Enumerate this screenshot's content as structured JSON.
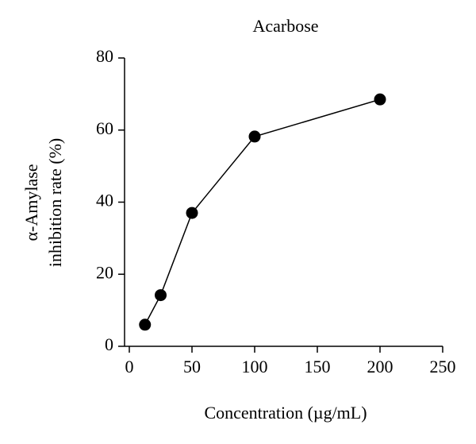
{
  "chart_data": {
    "type": "line",
    "title": "Acarbose",
    "x_label": "Concentration (µg/mL)",
    "y_label": [
      "α-Amylase",
      "inhibition rate (%)"
    ],
    "x": [
      12.5,
      25,
      50,
      100,
      200
    ],
    "series": [
      {
        "name": "Acarbose",
        "color": "#000000",
        "values": [
          6,
          14.2,
          37,
          58.2,
          68.5
        ]
      }
    ],
    "xlim": [
      0,
      250
    ],
    "xticks": [
      0,
      50,
      100,
      150,
      200,
      250
    ],
    "ylim": [
      0,
      80
    ],
    "yticks": [
      0,
      20,
      40,
      60,
      80
    ],
    "grid": false
  }
}
